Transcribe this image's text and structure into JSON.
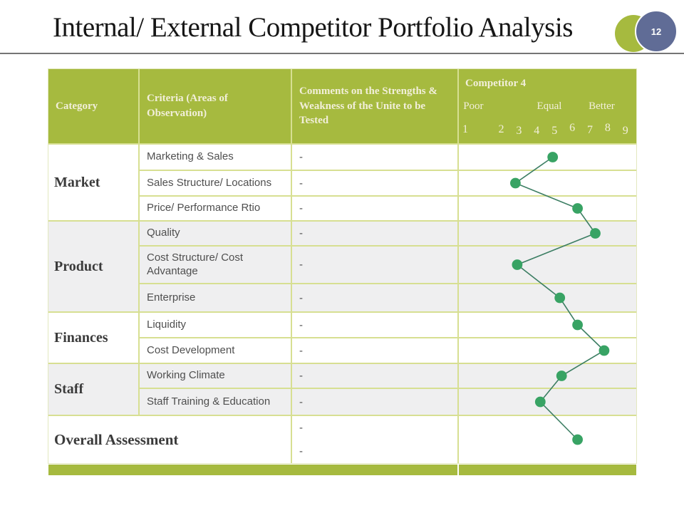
{
  "slide": {
    "title": "Internal/ External Competitor Portfolio Analysis",
    "page_number": "12"
  },
  "colors": {
    "olive_green": "#a6ba3f",
    "cell_border_green": "#d7df92",
    "shaded_row": "#efeff0",
    "marker_green": "#38a364",
    "line_green": "#3c7e63",
    "badge_slate": "#606c96",
    "header_text": "#f2efda",
    "body_text": "#4f4f4f"
  },
  "table": {
    "headers": {
      "category": "Category",
      "criteria": "Criteria (Areas of Observation)",
      "comments": "Comments on the Strengths & Weakness of the Unite to be Tested",
      "competitor": "Competitor 4",
      "scale_anchors": [
        "Poor",
        "Equal",
        "Better"
      ],
      "scale_numbers": [
        "1",
        "2",
        "3",
        "4",
        "5",
        "6",
        "7",
        "8",
        "9"
      ]
    },
    "groups": [
      {
        "category": "Market",
        "shaded": false,
        "rows": [
          {
            "criteria": "Marketing & Sales",
            "comment": "-"
          },
          {
            "criteria": "Sales Structure/ Locations",
            "comment": "-"
          },
          {
            "criteria": "Price/ Performance Rtio",
            "comment": "-"
          }
        ]
      },
      {
        "category": "Product",
        "shaded": true,
        "rows": [
          {
            "criteria": "Quality",
            "comment": "-"
          },
          {
            "criteria": "Cost Structure/ Cost Advantage",
            "comment": "-"
          },
          {
            "criteria": "Enterprise",
            "comment": "-"
          }
        ]
      },
      {
        "category": "Finances",
        "shaded": false,
        "rows": [
          {
            "criteria": "Liquidity",
            "comment": "-"
          },
          {
            "criteria": "Cost Development",
            "comment": "-"
          }
        ]
      },
      {
        "category": "Staff",
        "shaded": true,
        "rows": [
          {
            "criteria": "Working Climate",
            "comment": "-"
          },
          {
            "criteria": "Staff Training & Education",
            "comment": "-"
          }
        ]
      }
    ],
    "overall": {
      "label": "Overall Assessment",
      "comments": [
        "-",
        "-"
      ]
    }
  },
  "chart_data": {
    "type": "line",
    "title": "Competitor 4 rating profile",
    "orientation": "one horizontal 1-9 scale per table row, dots connected vertically",
    "x_scale": {
      "min": 1,
      "max": 9,
      "ticks": [
        1,
        2,
        3,
        4,
        5,
        6,
        7,
        8,
        9
      ],
      "anchor_labels": [
        "Poor",
        "Equal",
        "Better"
      ]
    },
    "categories": [
      "Marketing & Sales",
      "Sales Structure/ Locations",
      "Price/ Performance Rtio",
      "Quality",
      "Cost Structure/ Cost Advantage",
      "Enterprise",
      "Liquidity",
      "Cost Development",
      "Working Climate",
      "Staff Training & Education",
      "Overall Assessment"
    ],
    "values": [
      4.9,
      2.8,
      6.3,
      7.3,
      2.9,
      5.3,
      6.3,
      7.8,
      5.4,
      4.2,
      6.3
    ],
    "marker": "circle",
    "legend": "none",
    "grid": "table cell borders only"
  }
}
